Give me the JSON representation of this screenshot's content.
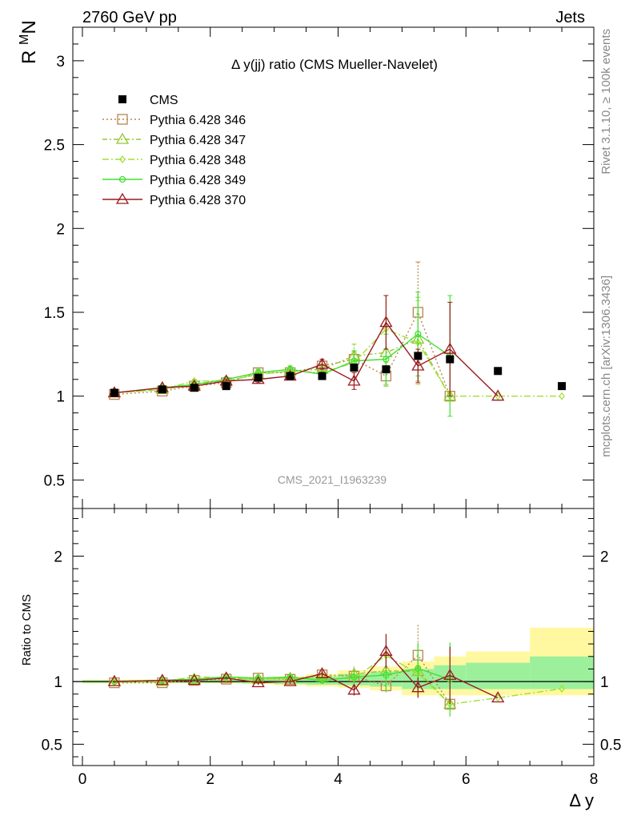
{
  "header": {
    "left": "2760 GeV pp",
    "right": "Jets"
  },
  "side_labels": {
    "rivet": "Rivet 3.1.10, ≥ 100k events",
    "mcplots": "mcplots.cern.ch [arXiv:1306.3436]"
  },
  "chart_data": {
    "type": "line",
    "title": "Δ y(jj) ratio (CMS Mueller-Navelet)",
    "watermark": "CMS_2021_I1963239",
    "xlabel": "Δ y",
    "ylabel_main": "R^M_N",
    "ylabel_ratio": "Ratio to CMS",
    "xlim": [
      -0.15,
      8.0
    ],
    "ylim_main": [
      0.33,
      3.2
    ],
    "ylim_ratio": [
      0.33,
      2.38
    ],
    "x_ticks": [
      "0",
      "2",
      "4",
      "6",
      "8"
    ],
    "y_ticks_main": [
      "0.5",
      "1",
      "1.5",
      "2",
      "2.5",
      "3"
    ],
    "y_ticks_ratio": [
      "0.5",
      "1",
      "2"
    ],
    "legend_position": "top-left",
    "cms": {
      "name": "CMS",
      "x": [
        0.5,
        1.25,
        1.75,
        2.25,
        2.75,
        3.25,
        3.75,
        4.25,
        4.75,
        5.25,
        5.75,
        6.5,
        7.5
      ],
      "y": [
        1.02,
        1.04,
        1.05,
        1.06,
        1.11,
        1.12,
        1.12,
        1.17,
        1.16,
        1.24,
        1.22,
        1.15,
        1.06
      ]
    },
    "band": {
      "edges": [
        0.0,
        1.0,
        1.5,
        2.0,
        2.5,
        3.0,
        3.5,
        4.0,
        4.5,
        5.0,
        5.5,
        6.0,
        7.0,
        8.0
      ],
      "inner_lo": [
        0.99,
        0.99,
        0.99,
        0.99,
        0.985,
        0.98,
        0.975,
        0.97,
        0.96,
        0.94,
        0.94,
        0.94,
        0.94
      ],
      "inner_hi": [
        1.01,
        1.01,
        1.01,
        1.015,
        1.02,
        1.03,
        1.04,
        1.06,
        1.08,
        1.1,
        1.13,
        1.15,
        1.2
      ],
      "outer_lo": [
        0.985,
        0.985,
        0.985,
        0.985,
        0.98,
        0.97,
        0.96,
        0.95,
        0.93,
        0.89,
        0.89,
        0.89,
        0.89
      ],
      "outer_hi": [
        1.015,
        1.015,
        1.015,
        1.02,
        1.03,
        1.04,
        1.06,
        1.09,
        1.12,
        1.16,
        1.2,
        1.24,
        1.43
      ]
    },
    "series": [
      {
        "name": "Pythia 6.428 346",
        "color": "#b8864b",
        "dash": "2,3",
        "marker": "square",
        "x": [
          0.5,
          1.25,
          1.75,
          2.25,
          2.75,
          3.25,
          3.75,
          4.25,
          4.75,
          5.25,
          5.75
        ],
        "y": [
          1.01,
          1.03,
          1.06,
          1.08,
          1.14,
          1.14,
          1.18,
          1.22,
          1.12,
          1.5,
          1.0
        ],
        "err": [
          0.01,
          0.01,
          0.01,
          0.01,
          0.02,
          0.02,
          0.03,
          0.05,
          0.06,
          0.3,
          0.0
        ]
      },
      {
        "name": "Pythia 6.428 347",
        "color": "#94c832",
        "dash": "6,3,2,3",
        "marker": "triangle",
        "x": [
          0.5,
          1.25,
          1.75,
          2.25,
          2.75,
          3.25,
          3.75,
          4.25,
          4.75,
          5.25,
          5.75
        ],
        "y": [
          1.02,
          1.04,
          1.07,
          1.09,
          1.13,
          1.15,
          1.16,
          1.24,
          1.26,
          1.34,
          1.0
        ],
        "err": [
          0.01,
          0.01,
          0.01,
          0.01,
          0.02,
          0.02,
          0.03,
          0.07,
          0.2,
          0.25,
          0.0
        ]
      },
      {
        "name": "Pythia 6.428 348",
        "color": "#a0e030",
        "dash": "8,3,2,3",
        "marker": "diamond",
        "x": [
          0.5,
          1.25,
          1.75,
          2.25,
          2.75,
          3.25,
          3.75,
          4.25,
          4.75,
          5.25,
          5.75,
          6.5,
          7.5
        ],
        "y": [
          1.02,
          1.04,
          1.09,
          1.09,
          1.13,
          1.15,
          1.14,
          1.2,
          1.4,
          1.32,
          1.0,
          1.0,
          1.0
        ],
        "err": [
          0.01,
          0.01,
          0.01,
          0.01,
          0.02,
          0.02,
          0.03,
          0.06,
          0.2,
          0.25,
          0.0,
          0.0,
          0.0
        ]
      },
      {
        "name": "Pythia 6.428 349",
        "color": "#40e030",
        "dash": "",
        "marker": "circle",
        "x": [
          0.5,
          1.25,
          1.75,
          2.25,
          2.75,
          3.25,
          3.75,
          4.25,
          4.75,
          5.25,
          5.75
        ],
        "y": [
          1.02,
          1.05,
          1.07,
          1.1,
          1.14,
          1.16,
          1.13,
          1.21,
          1.22,
          1.37,
          1.24
        ],
        "err": [
          0.01,
          0.01,
          0.01,
          0.01,
          0.02,
          0.02,
          0.03,
          0.06,
          0.15,
          0.25,
          0.36
        ]
      },
      {
        "name": "Pythia 6.428 370",
        "color": "#9b1a20",
        "dash": "",
        "marker": "triangle",
        "x": [
          0.5,
          1.25,
          1.75,
          2.25,
          2.75,
          3.25,
          3.75,
          4.25,
          4.75,
          5.25,
          5.75,
          6.5
        ],
        "y": [
          1.02,
          1.05,
          1.06,
          1.09,
          1.1,
          1.12,
          1.19,
          1.09,
          1.44,
          1.18,
          1.28,
          1.0
        ],
        "err": [
          0.01,
          0.01,
          0.01,
          0.01,
          0.02,
          0.02,
          0.03,
          0.05,
          0.16,
          0.1,
          0.28,
          0.0
        ]
      }
    ]
  }
}
